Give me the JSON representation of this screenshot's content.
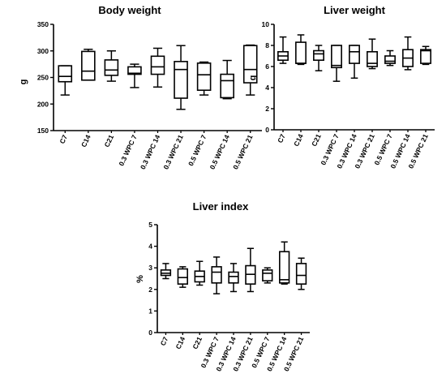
{
  "chart_data": [
    {
      "type": "box",
      "title": "Body weight",
      "ylabel": "g",
      "xlabel": "",
      "ylim": [
        150,
        350
      ],
      "yticks": [
        150,
        200,
        250,
        300,
        350
      ],
      "grid": false,
      "categories": [
        "C7",
        "C14",
        "C21",
        "0.3 WPC 7",
        "0.3 WPC 14",
        "0.3 WPC 21",
        "0.5 WPC 7",
        "0.5 WPC 14",
        "0.5 WPC 21"
      ],
      "boxes": [
        {
          "min": 217,
          "q1": 242,
          "median": 252,
          "q3": 272,
          "max": 272
        },
        {
          "min": 245,
          "q1": 245,
          "median": 262,
          "q3": 299,
          "max": 303
        },
        {
          "min": 243,
          "q1": 254,
          "median": 264,
          "q3": 283,
          "max": 300
        },
        {
          "min": 231,
          "q1": 256,
          "median": 258,
          "q3": 270,
          "max": 275
        },
        {
          "min": 232,
          "q1": 256,
          "median": 270,
          "q3": 290,
          "max": 305
        },
        {
          "min": 190,
          "q1": 211,
          "median": 265,
          "q3": 280,
          "max": 310
        },
        {
          "min": 217,
          "q1": 226,
          "median": 255,
          "q3": 277,
          "max": 279
        },
        {
          "min": 210,
          "q1": 212,
          "median": 244,
          "q3": 256,
          "max": 282
        },
        {
          "min": 217,
          "q1": 240,
          "median": 265,
          "q3": 310,
          "max": 311
        }
      ]
    },
    {
      "type": "box",
      "title": "Liver weight",
      "ylabel": "g",
      "xlabel": "",
      "ylim": [
        0,
        10
      ],
      "yticks": [
        0,
        2,
        4,
        6,
        8,
        10
      ],
      "grid": false,
      "categories": [
        "C7",
        "C14",
        "C21",
        "0.3 WPC 7",
        "0.3 WPC 14",
        "0.3 WPC 21",
        "0.5 WPC 7",
        "0.5 WPC 14",
        "0.5 WPC 21"
      ],
      "boxes": [
        {
          "min": 6.3,
          "q1": 6.6,
          "median": 7.0,
          "q3": 7.4,
          "max": 8.8
        },
        {
          "min": 6.2,
          "q1": 6.3,
          "median": 6.3,
          "q3": 8.3,
          "max": 9.0
        },
        {
          "min": 5.6,
          "q1": 6.6,
          "median": 7.2,
          "q3": 7.5,
          "max": 8.0
        },
        {
          "min": 4.6,
          "q1": 5.9,
          "median": 6.1,
          "q3": 8.0,
          "max": 8.0
        },
        {
          "min": 4.9,
          "q1": 6.3,
          "median": 7.4,
          "q3": 8.0,
          "max": 8.0
        },
        {
          "min": 5.8,
          "q1": 6.0,
          "median": 6.3,
          "q3": 7.4,
          "max": 8.6
        },
        {
          "min": 6.1,
          "q1": 6.3,
          "median": 6.5,
          "q3": 7.0,
          "max": 7.5
        },
        {
          "min": 5.7,
          "q1": 6.0,
          "median": 6.8,
          "q3": 7.6,
          "max": 8.8
        },
        {
          "min": 6.2,
          "q1": 6.3,
          "median": 7.5,
          "q3": 7.6,
          "max": 7.9
        }
      ]
    },
    {
      "type": "box",
      "title": "Liver index",
      "ylabel": "%",
      "xlabel": "",
      "ylim": [
        0,
        5
      ],
      "yticks": [
        0,
        1,
        2,
        3,
        4,
        5
      ],
      "grid": false,
      "categories": [
        "C7",
        "C14",
        "C21",
        "0.3 WPC 7",
        "0.3 WPC 14",
        "0.3 WPC 21",
        "0.5 WPC 7",
        "0.5 WPC 14",
        "0.5 WPC 21"
      ],
      "boxes": [
        {
          "min": 2.5,
          "q1": 2.65,
          "median": 2.75,
          "q3": 2.9,
          "max": 3.2
        },
        {
          "min": 2.1,
          "q1": 2.25,
          "median": 2.55,
          "q3": 2.95,
          "max": 3.05
        },
        {
          "min": 2.2,
          "q1": 2.35,
          "median": 2.6,
          "q3": 2.85,
          "max": 3.3
        },
        {
          "min": 1.8,
          "q1": 2.3,
          "median": 2.8,
          "q3": 3.05,
          "max": 3.5
        },
        {
          "min": 1.9,
          "q1": 2.3,
          "median": 2.6,
          "q3": 2.8,
          "max": 3.2
        },
        {
          "min": 1.9,
          "q1": 2.25,
          "median": 2.7,
          "q3": 3.1,
          "max": 3.9
        },
        {
          "min": 2.3,
          "q1": 2.4,
          "median": 2.75,
          "q3": 2.9,
          "max": 3.0
        },
        {
          "min": 2.25,
          "q1": 2.3,
          "median": 2.45,
          "q3": 3.75,
          "max": 4.2
        },
        {
          "min": 2.0,
          "q1": 2.25,
          "median": 2.65,
          "q3": 3.2,
          "max": 3.45
        }
      ]
    }
  ]
}
